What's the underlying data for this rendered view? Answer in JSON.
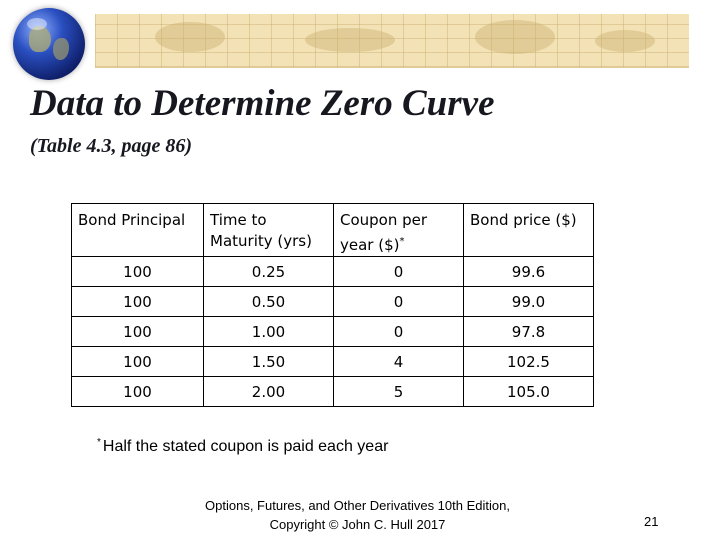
{
  "slide": {
    "title": "Data to Determine Zero Curve",
    "subtitle": "(Table 4.3, page 86)",
    "page_number": "21"
  },
  "table": {
    "headers": {
      "principal": "Bond Principal",
      "maturity": "Time to Maturity (yrs)",
      "coupon": "Coupon  per year ($)",
      "coupon_mark": "*",
      "price": "Bond price ($)"
    },
    "rows": [
      [
        "100",
        "0.25",
        "0",
        "99.6"
      ],
      [
        "100",
        "0.50",
        "0",
        "99.0"
      ],
      [
        "100",
        "1.00",
        "0",
        "97.8"
      ],
      [
        "100",
        "1.50",
        "4",
        "102.5"
      ],
      [
        "100",
        "2.00",
        "5",
        "105.0"
      ]
    ]
  },
  "footnote": {
    "mark": "*",
    "text": "Half the stated coupon is paid each year"
  },
  "credit": {
    "line1": "Options, Futures, and Other Derivatives 10th Edition,",
    "line2": "Copyright © John C. Hull 2017"
  },
  "icons": {
    "logo": "globe-icon",
    "banner": "world-map-banner"
  }
}
